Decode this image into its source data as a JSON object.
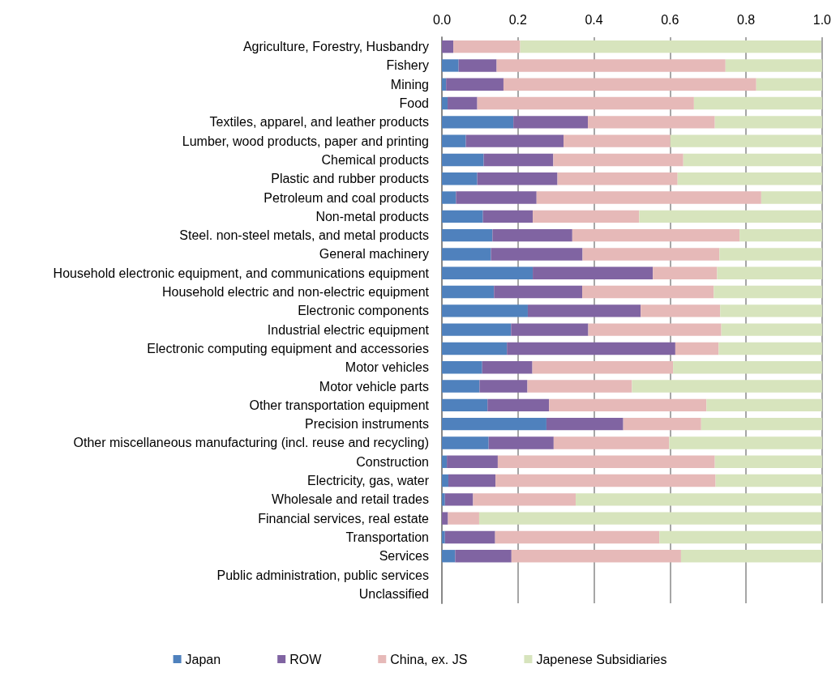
{
  "chart_data": {
    "type": "bar",
    "orientation": "horizontal",
    "stacked": true,
    "categories": [
      "Agriculture, Forestry, Husbandry",
      "Fishery",
      "Mining",
      "Food",
      "Textiles, apparel, and leather products",
      "Lumber, wood products, paper and printing",
      "Chemical products",
      "Plastic and rubber products",
      "Petroleum and coal products",
      "Non-metal products",
      "Steel. non-steel metals, and metal products",
      "General machinery",
      "Household electronic equipment, and communications equipment",
      "Household electric and non-electric equipment",
      "Electronic components",
      "Industrial electric equipment",
      "Electronic computing equipment and accessories",
      "Motor vehicles",
      "Motor vehicle parts",
      "Other transportation equipment",
      "Precision instruments",
      "Other miscellaneous manufacturing (incl. reuse and recycling)",
      "Construction",
      "Electricity, gas, water",
      "Wholesale and retail trades",
      "Financial services, real estate",
      "Transportation",
      "Services",
      "Public administration, public services",
      "Unclassified"
    ],
    "series": [
      {
        "name": "Japan",
        "color": "#4f81bd",
        "values": [
          null,
          0.044,
          0.011,
          0.015,
          0.188,
          0.063,
          0.11,
          0.093,
          0.037,
          0.108,
          0.133,
          0.129,
          0.239,
          0.137,
          0.226,
          0.182,
          0.171,
          0.106,
          0.099,
          0.12,
          0.275,
          0.123,
          0.013,
          0.017,
          0.008,
          null,
          0.008,
          0.035,
          null,
          null
        ]
      },
      {
        "name": "ROW",
        "color": "#8064a2",
        "values": [
          0.03,
          0.1,
          0.151,
          0.078,
          0.196,
          0.257,
          0.183,
          0.211,
          0.212,
          0.131,
          0.21,
          0.241,
          0.316,
          0.232,
          0.297,
          0.203,
          0.443,
          0.132,
          0.126,
          0.162,
          0.202,
          0.171,
          0.134,
          0.124,
          0.074,
          0.016,
          0.132,
          0.148,
          null,
          null
        ]
      },
      {
        "name": "China, ex. JS",
        "color": "#e6b9b8",
        "values": [
          0.176,
          0.602,
          0.665,
          0.57,
          0.334,
          0.281,
          0.342,
          0.316,
          0.591,
          0.28,
          0.44,
          0.36,
          0.169,
          0.346,
          0.209,
          0.35,
          0.114,
          0.37,
          0.275,
          0.414,
          0.205,
          0.304,
          0.571,
          0.579,
          0.27,
          0.082,
          0.432,
          0.446,
          null,
          null
        ]
      },
      {
        "name": "Japenese Subsidiaries",
        "color": "#d7e4bd",
        "values": [
          0.792,
          0.254,
          0.173,
          0.337,
          0.282,
          0.399,
          0.365,
          0.38,
          0.16,
          0.481,
          0.217,
          0.27,
          0.276,
          0.285,
          0.268,
          0.265,
          0.272,
          0.392,
          0.5,
          0.304,
          0.318,
          0.402,
          0.282,
          0.28,
          0.648,
          0.901,
          0.428,
          0.371,
          null,
          null
        ]
      }
    ],
    "xlim": [
      0,
      1
    ],
    "xticks": [
      {
        "value": 0,
        "label": "0.0"
      },
      {
        "value": 0.2,
        "label": "0.2"
      },
      {
        "value": 0.4,
        "label": "0.4"
      },
      {
        "value": 0.6,
        "label": "0.6"
      },
      {
        "value": 0.8,
        "label": "0.8"
      },
      {
        "value": 1,
        "label": "1.0"
      }
    ],
    "grid": "x",
    "legend": "bottom"
  }
}
